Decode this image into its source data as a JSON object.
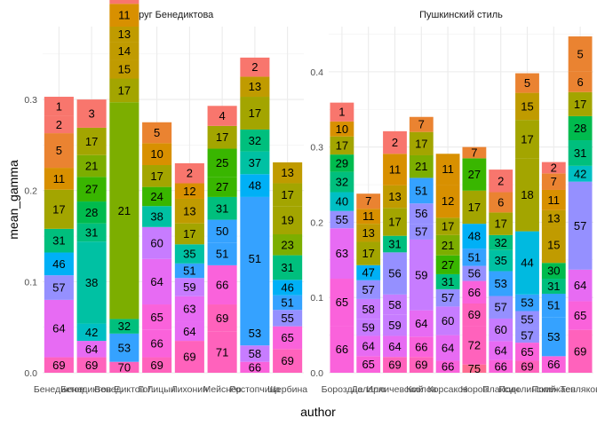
{
  "chart_data": {
    "type": "bar",
    "stacked": true,
    "xlabel": "author",
    "ylabel": "mean_gamma",
    "grid": true,
    "legend": "none",
    "palette": [
      "#F8766D",
      "#EA8331",
      "#D89000",
      "#C09B00",
      "#A3A500",
      "#7CAE00",
      "#39B600",
      "#00BB4E",
      "#00BF7D",
      "#00C1A3",
      "#00BFC4",
      "#00BAE0",
      "#00B0F6",
      "#35A2FF",
      "#9590FF",
      "#C77CFF",
      "#E76BF3",
      "#FA62DB",
      "#FF62BC",
      "#FF6C91"
    ],
    "panels": [
      {
        "title": "Круг Бенедиктова",
        "ylim": [
          0,
          0.38
        ],
        "yticks": [
          0.0,
          0.1,
          0.2,
          0.3
        ],
        "bars": [
          {
            "author": "Бенедиктов",
            "segments": [
              [
                69,
                0.017
              ],
              [
                64,
                0.063
              ],
              [
                57,
                0.027
              ],
              [
                46,
                0.025
              ],
              [
                31,
                0.026
              ],
              [
                17,
                0.043
              ],
              [
                11,
                0.024
              ],
              [
                5,
                0.038
              ],
              [
                2,
                0.019
              ],
              [
                1,
                0.021
              ]
            ]
          },
          {
            "author": "Бенедиктов Е.",
            "segments": [
              [
                69,
                0.017
              ],
              [
                64,
                0.018
              ],
              [
                42,
                0.019
              ],
              [
                38,
                0.09
              ],
              [
                31,
                0.02
              ],
              [
                28,
                0.024
              ],
              [
                27,
                0.027
              ],
              [
                21,
                0.024
              ],
              [
                17,
                0.03
              ],
              [
                3,
                0.031
              ]
            ]
          },
          {
            "author": "Бенедиктов Г.",
            "segments": [
              [
                70,
                0.012
              ],
              [
                53,
                0.031
              ],
              [
                32,
                0.016
              ],
              [
                21,
                0.238
              ],
              [
                17,
                0.026
              ],
              [
                15,
                0.02
              ],
              [
                14,
                0.02
              ],
              [
                13,
                0.017
              ],
              [
                11,
                0.025
              ],
              [
                2,
                0.055
              ]
            ]
          },
          {
            "author": "Голицын",
            "segments": [
              [
                69,
                0.017
              ],
              [
                66,
                0.03
              ],
              [
                65,
                0.028
              ],
              [
                64,
                0.05
              ],
              [
                60,
                0.035
              ],
              [
                38,
                0.023
              ],
              [
                24,
                0.021
              ],
              [
                17,
                0.024
              ],
              [
                10,
                0.024
              ],
              [
                5,
                0.023
              ]
            ]
          },
          {
            "author": "Лихонин",
            "segments": [
              [
                69,
                0.035
              ],
              [
                64,
                0.021
              ],
              [
                63,
                0.028
              ],
              [
                59,
                0.02
              ],
              [
                51,
                0.016
              ],
              [
                35,
                0.021
              ],
              [
                17,
                0.023
              ],
              [
                13,
                0.027
              ],
              [
                12,
                0.017
              ],
              [
                2,
                0.022
              ]
            ]
          },
          {
            "author": "Мейснер",
            "segments": [
              [
                71,
                0.045
              ],
              [
                69,
                0.03
              ],
              [
                66,
                0.043
              ],
              [
                51,
                0.025
              ],
              [
                50,
                0.025
              ],
              [
                31,
                0.025
              ],
              [
                27,
                0.022
              ],
              [
                25,
                0.031
              ],
              [
                17,
                0.025
              ],
              [
                4,
                0.022
              ]
            ]
          },
          {
            "author": "Ростопчина",
            "segments": [
              [
                66,
                0.012
              ],
              [
                58,
                0.018
              ],
              [
                53,
                0.027
              ],
              [
                51,
                0.136
              ],
              [
                48,
                0.025
              ],
              [
                37,
                0.025
              ],
              [
                32,
                0.024
              ],
              [
                17,
                0.036
              ],
              [
                13,
                0.022
              ],
              [
                2,
                0.021
              ]
            ]
          },
          {
            "author": "Щербина",
            "segments": [
              [
                69,
                0.026
              ],
              [
                65,
                0.025
              ],
              [
                55,
                0.018
              ],
              [
                51,
                0.016
              ],
              [
                46,
                0.017
              ],
              [
                31,
                0.027
              ],
              [
                23,
                0.023
              ],
              [
                19,
                0.031
              ],
              [
                17,
                0.025
              ],
              [
                13,
                0.023
              ]
            ]
          }
        ]
      },
      {
        "title": "Пушкинский стиль",
        "ylim": [
          0,
          0.46
        ],
        "yticks": [
          0.0,
          0.1,
          0.2,
          0.3,
          0.4
        ],
        "bars": [
          {
            "author": "Бороздна",
            "segments": [
              [
                66,
                0.062
              ],
              [
                65,
                0.063
              ],
              [
                63,
                0.067
              ],
              [
                55,
                0.023
              ],
              [
                40,
                0.025
              ],
              [
                32,
                0.027
              ],
              [
                29,
                0.023
              ],
              [
                17,
                0.024
              ],
              [
                10,
                0.02
              ],
              [
                1,
                0.025
              ]
            ]
          },
          {
            "author": "Деларю",
            "segments": [
              [
                65,
                0.022
              ],
              [
                64,
                0.027
              ],
              [
                59,
                0.022
              ],
              [
                58,
                0.027
              ],
              [
                57,
                0.025
              ],
              [
                47,
                0.02
              ],
              [
                17,
                0.031
              ],
              [
                13,
                0.024
              ],
              [
                11,
                0.02
              ],
              [
                7,
                0.02
              ]
            ]
          },
          {
            "author": "Илличевский",
            "segments": [
              [
                69,
                0.021
              ],
              [
                64,
                0.028
              ],
              [
                59,
                0.028
              ],
              [
                58,
                0.027
              ],
              [
                56,
                0.056
              ],
              [
                31,
                0.022
              ],
              [
                17,
                0.037
              ],
              [
                13,
                0.03
              ],
              [
                11,
                0.042
              ],
              [
                2,
                0.03
              ]
            ]
          },
          {
            "author": "Козлов",
            "segments": [
              [
                69,
                0.021
              ],
              [
                66,
                0.027
              ],
              [
                64,
                0.035
              ],
              [
                59,
                0.094
              ],
              [
                57,
                0.021
              ],
              [
                56,
                0.027
              ],
              [
                51,
                0.034
              ],
              [
                21,
                0.03
              ],
              [
                17,
                0.031
              ],
              [
                7,
                0.02
              ]
            ]
          },
          {
            "author": "Корсаков",
            "segments": [
              [
                66,
                0.016
              ],
              [
                64,
                0.034
              ],
              [
                60,
                0.038
              ],
              [
                57,
                0.023
              ],
              [
                31,
                0.02
              ],
              [
                27,
                0.025
              ],
              [
                21,
                0.027
              ],
              [
                17,
                0.023
              ],
              [
                12,
                0.044
              ],
              [
                11,
                0.041
              ]
            ]
          },
          {
            "author": "Норов",
            "segments": [
              [
                75,
                0.011
              ],
              [
                72,
                0.051
              ],
              [
                69,
                0.03
              ],
              [
                66,
                0.03
              ],
              [
                56,
                0.02
              ],
              [
                51,
                0.023
              ],
              [
                48,
                0.033
              ],
              [
                17,
                0.044
              ],
              [
                27,
                0.043
              ],
              [
                7,
                0.015
              ]
            ]
          },
          {
            "author": "Плаксин",
            "segments": [
              [
                66,
                0.017
              ],
              [
                64,
                0.025
              ],
              [
                60,
                0.03
              ],
              [
                57,
                0.03
              ],
              [
                53,
                0.033
              ],
              [
                35,
                0.028
              ],
              [
                32,
                0.02
              ],
              [
                17,
                0.03
              ],
              [
                6,
                0.027
              ],
              [
                2,
                0.03
              ]
            ]
          },
          {
            "author": "Подолинский",
            "segments": [
              [
                69,
                0.016
              ],
              [
                65,
                0.024
              ],
              [
                57,
                0.019
              ],
              [
                55,
                0.023
              ],
              [
                53,
                0.022
              ],
              [
                44,
                0.084
              ],
              [
                18,
                0.097
              ],
              [
                17,
                0.051
              ],
              [
                15,
                0.036
              ],
              [
                5,
                0.026
              ]
            ]
          },
          {
            "author": "Полежаев",
            "segments": [
              [
                66,
                0.022
              ],
              [
                53,
                0.052
              ],
              [
                51,
                0.031
              ],
              [
                31,
                0.02
              ],
              [
                30,
                0.021
              ],
              [
                15,
                0.048
              ],
              [
                13,
                0.022
              ],
              [
                11,
                0.027
              ],
              [
                7,
                0.022
              ],
              [
                2,
                0.015
              ]
            ]
          },
          {
            "author": "Тепляков",
            "segments": [
              [
                69,
                0.057
              ],
              [
                65,
                0.038
              ],
              [
                64,
                0.042
              ],
              [
                57,
                0.117
              ],
              [
                42,
                0.021
              ],
              [
                31,
                0.034
              ],
              [
                28,
                0.032
              ],
              [
                17,
                0.032
              ],
              [
                6,
                0.027
              ],
              [
                5,
                0.047
              ]
            ]
          }
        ]
      }
    ],
    "x_tick_labels": [
      "Бенедиктов",
      "Бенедиктов Е.",
      "Бенедиктов Г.",
      "Голицын",
      "Лихонин",
      "Мейснер",
      "Ростопчина",
      "Щербина",
      "Бороздна",
      "Деларю",
      "Илличевский",
      "Козлов",
      "Корсаков",
      "Норов",
      "Плаксин",
      "Подолинский",
      "Полежаев",
      "Тепляков"
    ]
  }
}
